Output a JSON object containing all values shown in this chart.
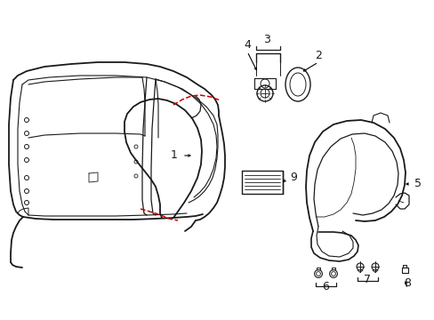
{
  "bg_color": "#ffffff",
  "line_color": "#1a1a1a",
  "red_dash_color": "#cc0000",
  "figsize": [
    4.89,
    3.6
  ],
  "dpi": 100
}
